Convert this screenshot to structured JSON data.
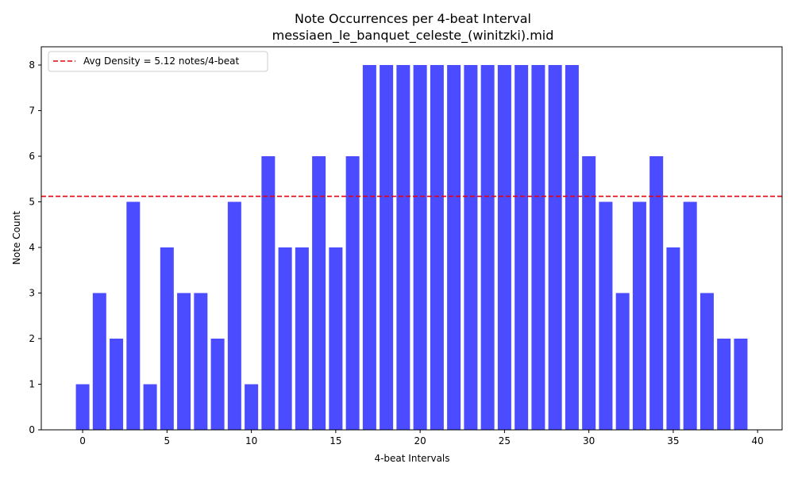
{
  "chart_data": {
    "type": "bar",
    "title": "Note Occurrences per 4-beat Interval",
    "subtitle": "messiaen_le_banquet_celeste_(winitzki).mid",
    "xlabel": "4-beat Intervals",
    "ylabel": "Note Count",
    "x": [
      0,
      1,
      2,
      3,
      4,
      5,
      6,
      7,
      8,
      9,
      10,
      11,
      12,
      13,
      14,
      15,
      16,
      17,
      18,
      19,
      20,
      21,
      22,
      23,
      24,
      25,
      26,
      27,
      28,
      29,
      30,
      31,
      32,
      33,
      34,
      35,
      36,
      37,
      38,
      39
    ],
    "values": [
      1,
      3,
      2,
      5,
      1,
      4,
      3,
      3,
      2,
      5,
      1,
      6,
      4,
      4,
      6,
      4,
      6,
      8,
      8,
      8,
      8,
      8,
      8,
      8,
      8,
      8,
      8,
      8,
      8,
      8,
      6,
      5,
      3,
      5,
      6,
      4,
      5,
      3,
      2,
      2
    ],
    "xlim": [
      -2.45,
      41.45
    ],
    "ylim": [
      0,
      8.4
    ],
    "xticks": [
      0,
      5,
      10,
      15,
      20,
      25,
      30,
      35,
      40
    ],
    "yticks": [
      0,
      1,
      2,
      3,
      4,
      5,
      6,
      7,
      8
    ],
    "bar_color": "#4b4bff",
    "average": {
      "value": 5.12,
      "label": "Avg Density = 5.12 notes/4-beat",
      "color": "#e8000b",
      "style": "dashed"
    },
    "legend_position": "top-left",
    "grid": false
  }
}
